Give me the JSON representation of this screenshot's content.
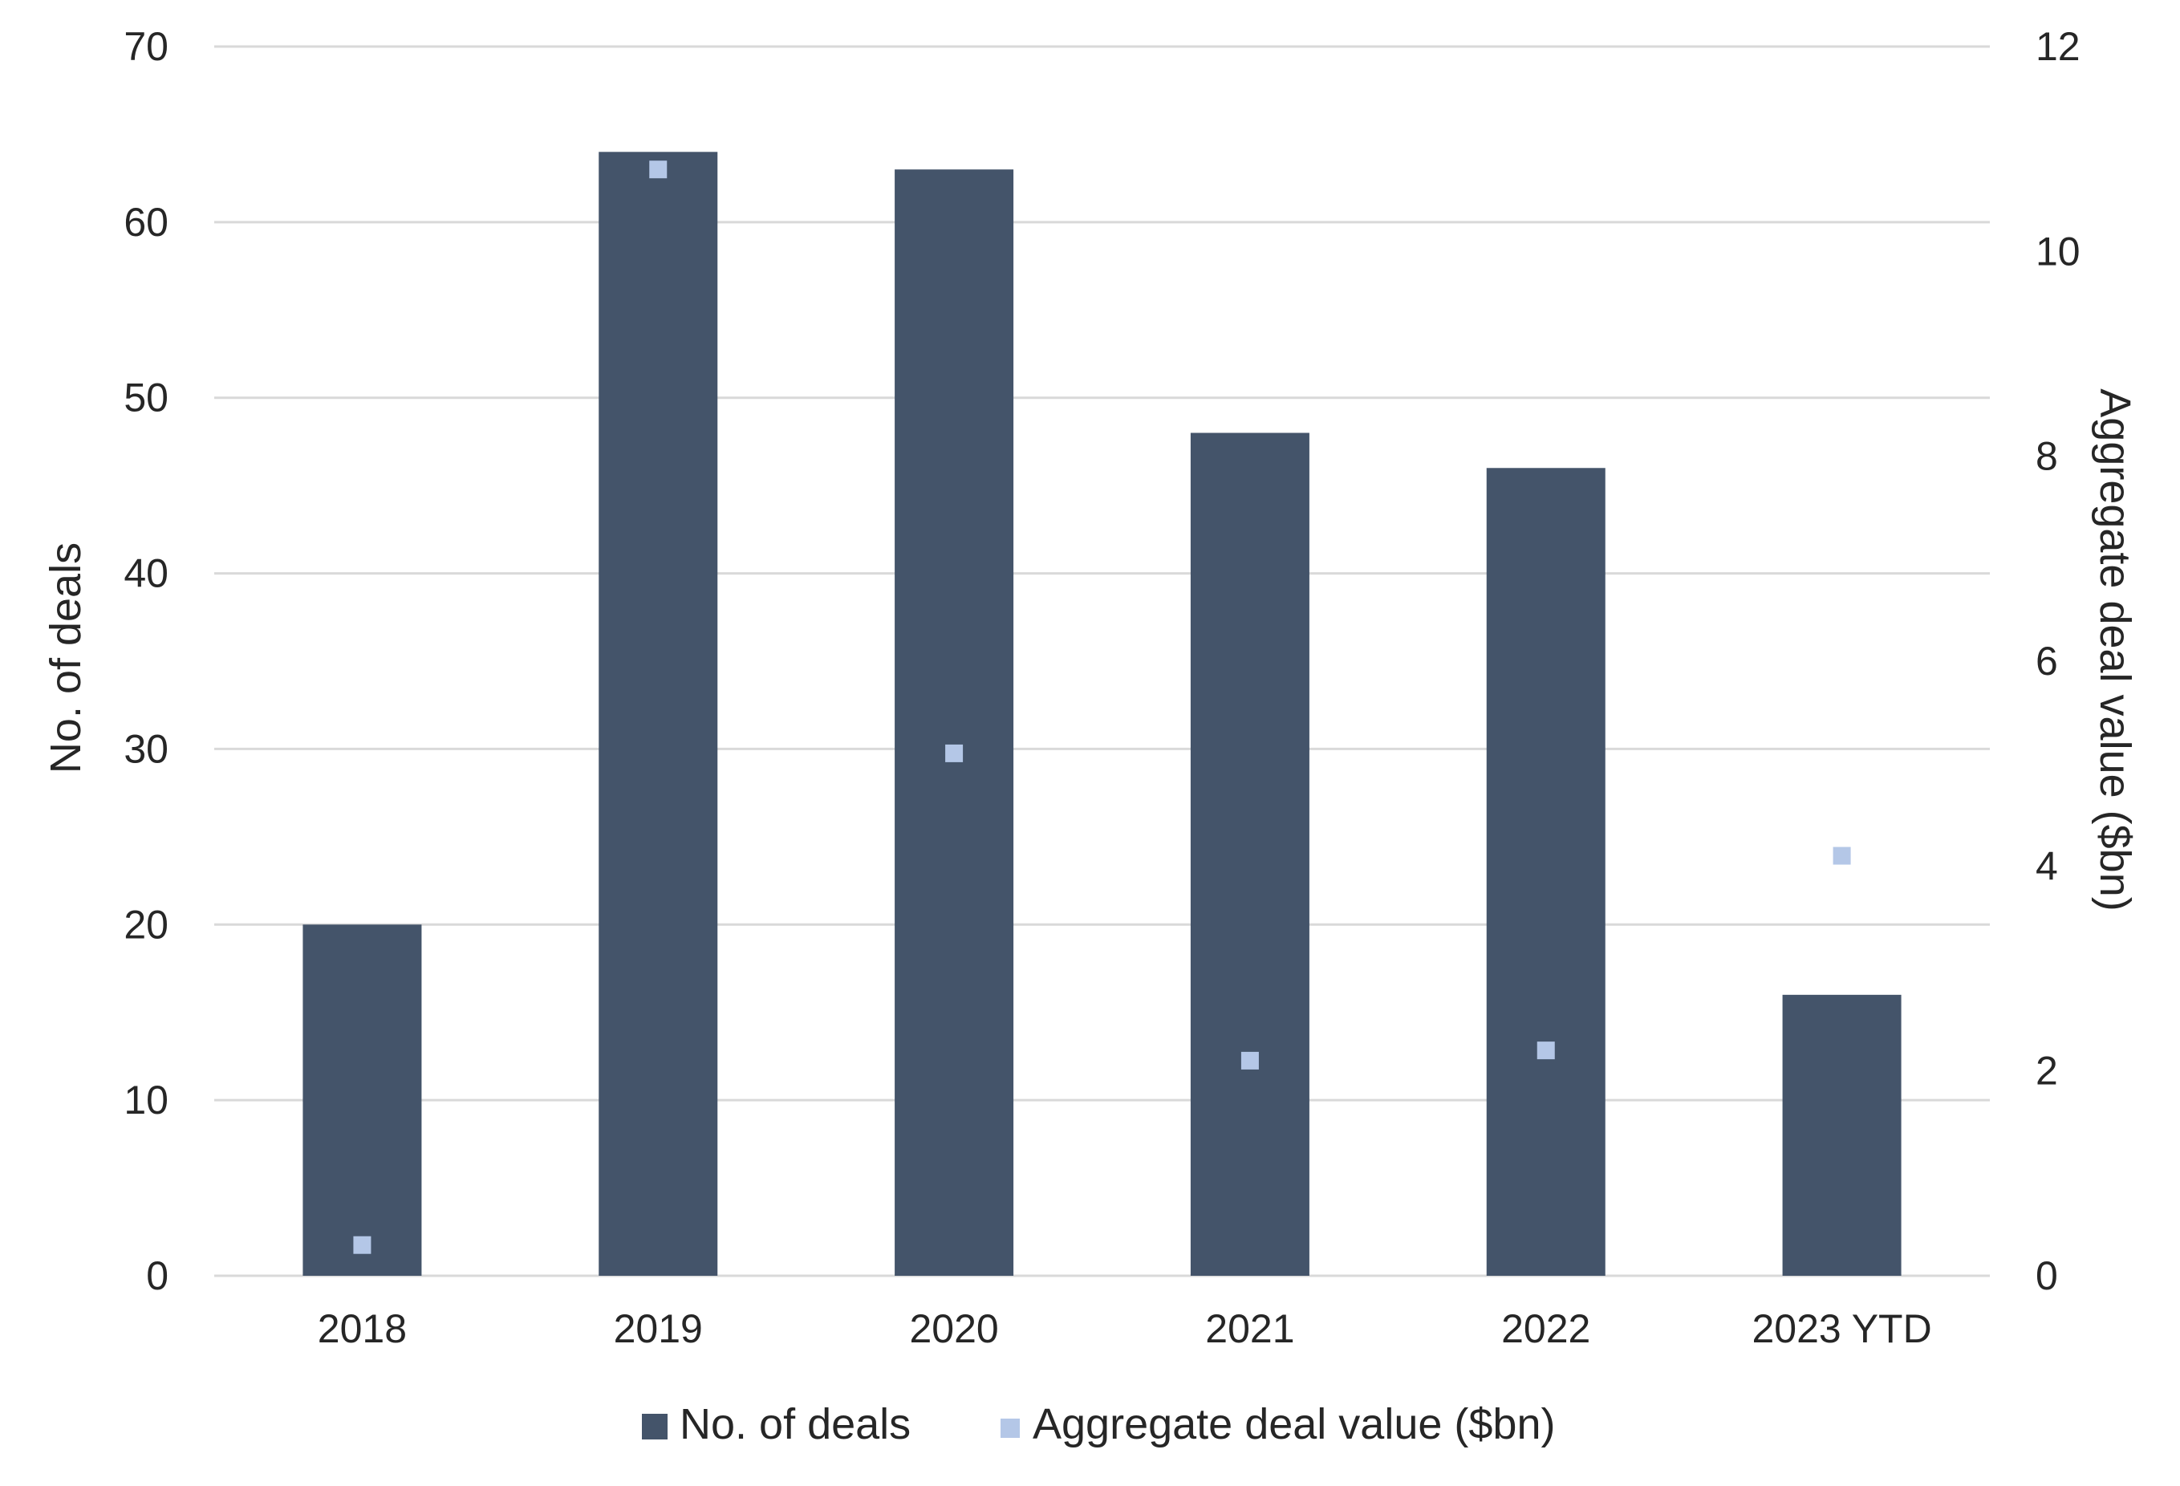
{
  "chart_data": {
    "type": "bar",
    "categories": [
      "2018",
      "2019",
      "2020",
      "2021",
      "2022",
      "2023 YTD"
    ],
    "series": [
      {
        "name": "No. of deals",
        "kind": "bar",
        "axis": "left",
        "color": "#44546a",
        "values": [
          20,
          64,
          63,
          48,
          46,
          16
        ]
      },
      {
        "name": "Aggregate deal value ($bn)",
        "kind": "marker",
        "axis": "right",
        "color": "#b4c7e7",
        "values": [
          0.3,
          10.8,
          5.1,
          2.1,
          2.2,
          4.1
        ]
      }
    ],
    "ylabel": "No. of deals",
    "y2label": "Aggregate deal value ($bn)",
    "ylim": [
      0,
      70
    ],
    "y2lim": [
      0,
      12
    ],
    "yticks": [
      0,
      10,
      20,
      30,
      40,
      50,
      60,
      70
    ],
    "y2ticks": [
      0,
      2,
      4,
      6,
      8,
      10,
      12
    ],
    "grid": true,
    "legend_position": "bottom"
  },
  "colors": {
    "grid": "#d9d9d9",
    "axis_line": "#d9d9d9",
    "text": "#262626"
  }
}
